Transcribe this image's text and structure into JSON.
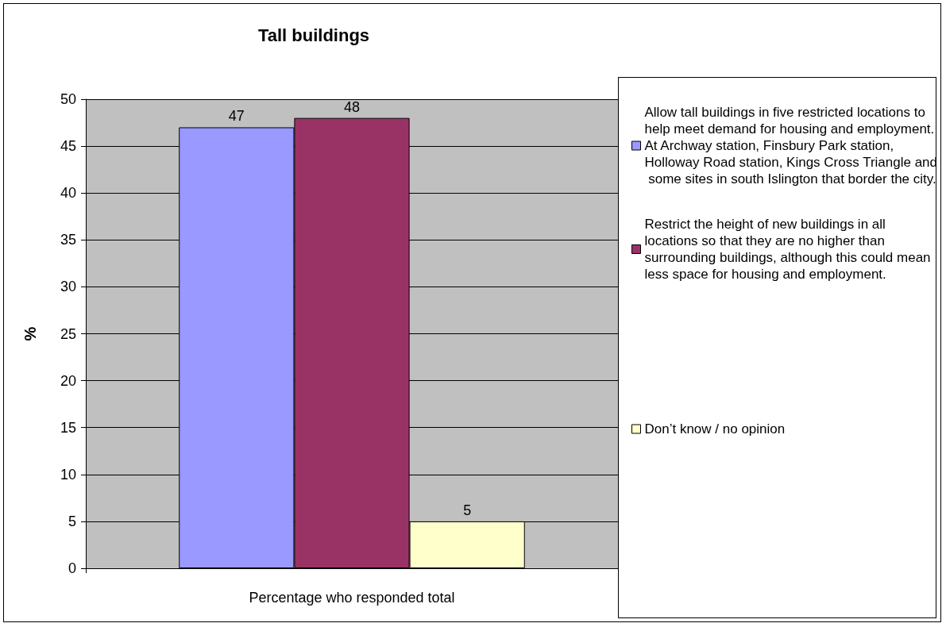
{
  "chart_data": {
    "type": "bar",
    "title": "Tall buildings",
    "ylabel": "%",
    "categories": [
      "Percentage who responded total"
    ],
    "series": [
      {
        "name": "Allow tall buildings in five restricted locations to help meet demand for housing and employment. At Archway station, Finsbury Park station, Holloway Road station, Kings Cross Triangle and some sites in south Islington that border the city.",
        "color": "#9999ff",
        "values": [
          47
        ]
      },
      {
        "name": "Restrict the height of new buildings in all locations so that they are no higher than surrounding buildings, although this could mean less space for housing and employment.",
        "color": "#993366",
        "values": [
          48
        ]
      },
      {
        "name": "Don’t know / no opinion",
        "color": "#ffffcc",
        "values": [
          5
        ]
      }
    ],
    "ylim": [
      0,
      50
    ],
    "yticks": [
      0,
      5,
      10,
      15,
      20,
      25,
      30,
      35,
      40,
      45,
      50
    ],
    "grid": "y",
    "legend": "right",
    "data_labels": true
  }
}
